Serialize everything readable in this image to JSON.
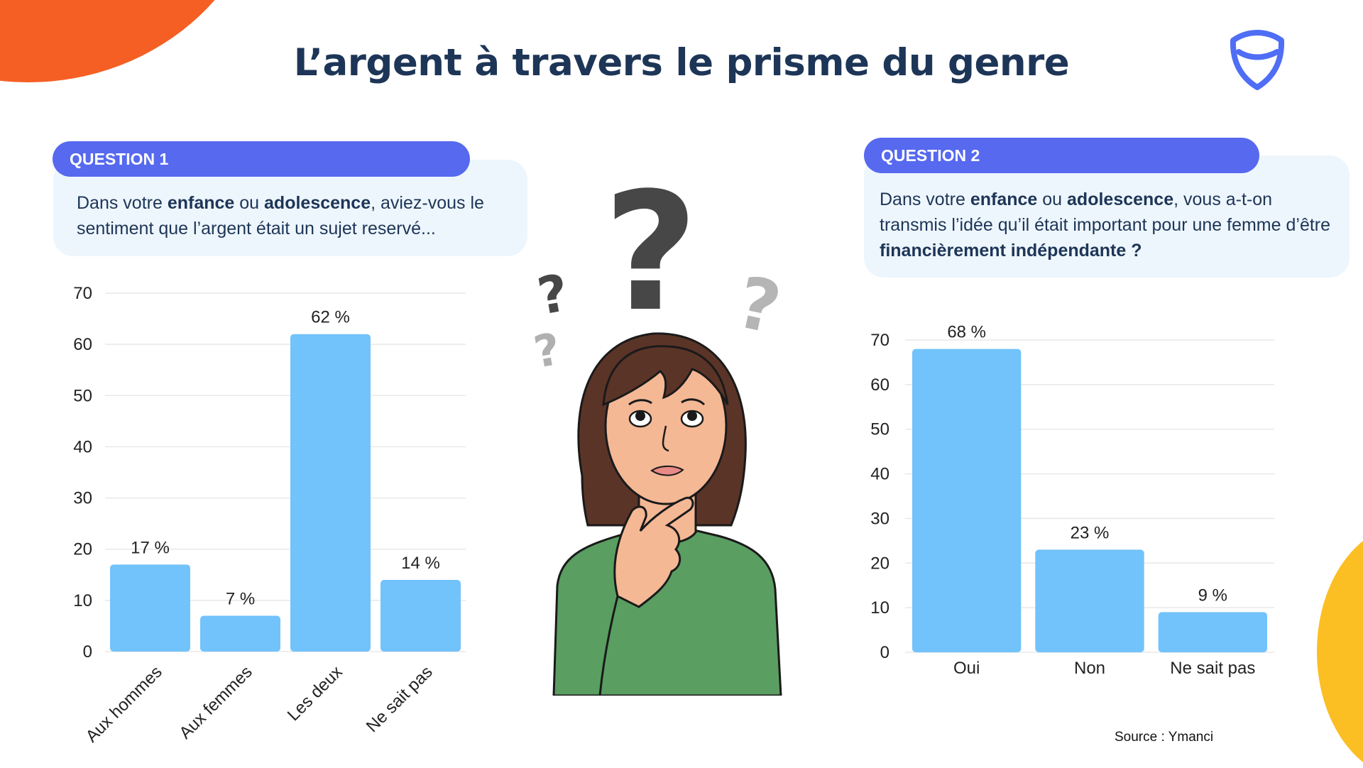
{
  "header": {
    "title": "L’argent à travers le prisme du genre"
  },
  "logo": {
    "icon": "shield-icon",
    "color": "#4f6df5"
  },
  "question1": {
    "label": "QUESTION 1",
    "text": [
      "Dans votre ",
      "enfance",
      " ou ",
      "adolescence",
      ", aviez-vous le sentiment que l’argent était un sujet reservé..."
    ]
  },
  "question2": {
    "label": "QUESTION 2",
    "text": [
      "Dans votre ",
      "enfance",
      " ou ",
      "adolescence",
      ", vous a-t-on transmis l’idée qu’il était important pour une femme d’être ",
      "financièrement indépendante ?"
    ]
  },
  "illustration": {
    "subject": "femme pensive avec points d'interrogation",
    "question_mark": "?"
  },
  "source": "Source : Ymanci",
  "colors": {
    "bar": "#72c2fb",
    "pill": "#5669ef",
    "card": "#eef6fd",
    "title": "#1d3557",
    "orange": "#f55f24",
    "yellow": "#fbbf24"
  },
  "chart_data": [
    {
      "type": "bar",
      "categories": [
        "Aux hommes",
        "Aux femmes",
        "Les deux",
        "Ne sait pas"
      ],
      "values": [
        17,
        7,
        62,
        14
      ],
      "labels": [
        "17 %",
        "7 %",
        "62 %",
        "14 %"
      ],
      "ylim": [
        0,
        70
      ],
      "yticks": [
        0,
        10,
        20,
        30,
        40,
        50,
        60,
        70
      ],
      "grid": true,
      "rotated_categories": true
    },
    {
      "type": "bar",
      "categories": [
        "Oui",
        "Non",
        "Ne sait pas"
      ],
      "values": [
        68,
        23,
        9
      ],
      "labels": [
        "68 %",
        "23 %",
        "9 %"
      ],
      "ylim": [
        0,
        70
      ],
      "yticks": [
        0,
        10,
        20,
        30,
        40,
        50,
        60,
        70
      ],
      "grid": true,
      "rotated_categories": false
    }
  ]
}
